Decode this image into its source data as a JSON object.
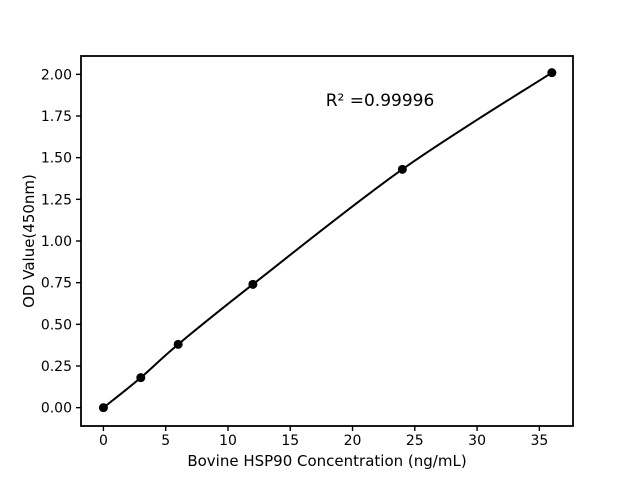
{
  "chart_data": {
    "type": "line",
    "title": "",
    "xlabel": "Bovine HSP90 Concentration (ng/mL)",
    "ylabel": "OD Value(450nm)",
    "x": [
      0,
      3,
      6,
      12,
      24,
      36
    ],
    "y": [
      0.0,
      0.18,
      0.38,
      0.74,
      1.43,
      2.01
    ],
    "xlim": [
      -1.8,
      37.7
    ],
    "ylim": [
      -0.11,
      2.11
    ],
    "xticks": [
      0,
      5,
      10,
      15,
      20,
      25,
      30,
      35
    ],
    "xtick_labels": [
      "0",
      "5",
      "10",
      "15",
      "20",
      "25",
      "30",
      "35"
    ],
    "yticks": [
      0.0,
      0.25,
      0.5,
      0.75,
      1.0,
      1.25,
      1.5,
      1.75,
      2.0
    ],
    "ytick_labels": [
      "0.00",
      "0.25",
      "0.50",
      "0.75",
      "1.00",
      "1.25",
      "1.50",
      "1.75",
      "2.00"
    ],
    "annotation": {
      "text": "R² =0.99996",
      "x": 22.2,
      "y": 1.84
    },
    "curve": "smooth",
    "grid": false,
    "legend_position": "none",
    "line_color": "#000000",
    "marker": "circle",
    "marker_color": "#000000",
    "background_color": "#ffffff"
  }
}
